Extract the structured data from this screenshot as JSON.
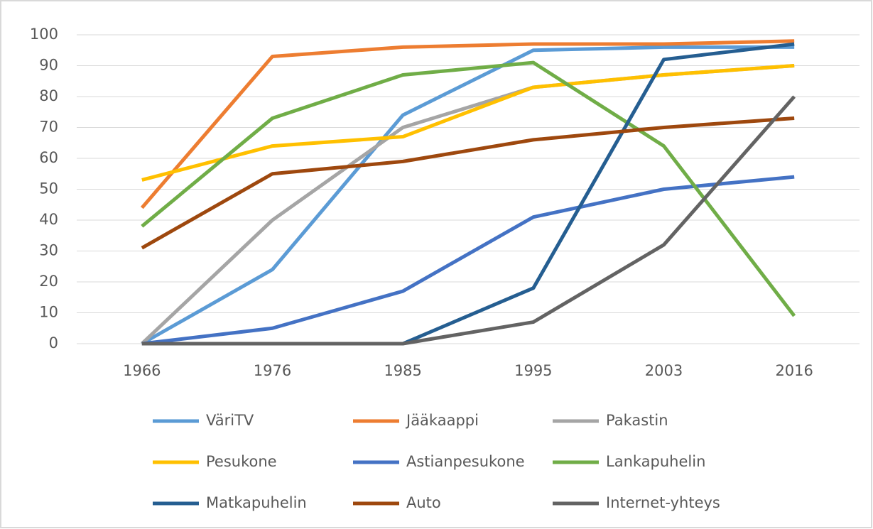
{
  "chart_data": {
    "type": "line",
    "categories": [
      "1966",
      "1976",
      "1985",
      "1995",
      "2003",
      "2016"
    ],
    "series": [
      {
        "name": "VäriTV",
        "color": "#5b9bd5",
        "values": [
          0,
          24,
          74,
          95,
          96,
          96
        ]
      },
      {
        "name": "Jääkaappi",
        "color": "#ed7d31",
        "values": [
          44,
          93,
          96,
          97,
          97,
          98
        ]
      },
      {
        "name": "Pakastin",
        "color": "#a5a5a5",
        "values": [
          0,
          40,
          70,
          83,
          87,
          90
        ]
      },
      {
        "name": "Pesukone",
        "color": "#ffc000",
        "values": [
          53,
          64,
          67,
          83,
          87,
          90
        ]
      },
      {
        "name": "Astianpesukone",
        "color": "#4472c4",
        "values": [
          0,
          5,
          17,
          41,
          50,
          54
        ]
      },
      {
        "name": "Lankapuhelin",
        "color": "#70ad47",
        "values": [
          38,
          73,
          87,
          91,
          64,
          9
        ]
      },
      {
        "name": "Matkapuhelin",
        "color": "#255e91",
        "values": [
          0,
          0,
          0,
          18,
          92,
          97
        ]
      },
      {
        "name": "Auto",
        "color": "#9e480e",
        "values": [
          31,
          55,
          59,
          66,
          70,
          73
        ]
      },
      {
        "name": "Internet-yhteys",
        "color": "#636363",
        "values": [
          0,
          0,
          0,
          7,
          32,
          80
        ]
      }
    ],
    "ylim": [
      0,
      100
    ],
    "yticks": [
      0,
      10,
      20,
      30,
      40,
      50,
      60,
      70,
      80,
      90,
      100
    ],
    "grid": true,
    "legend": "bottom"
  }
}
